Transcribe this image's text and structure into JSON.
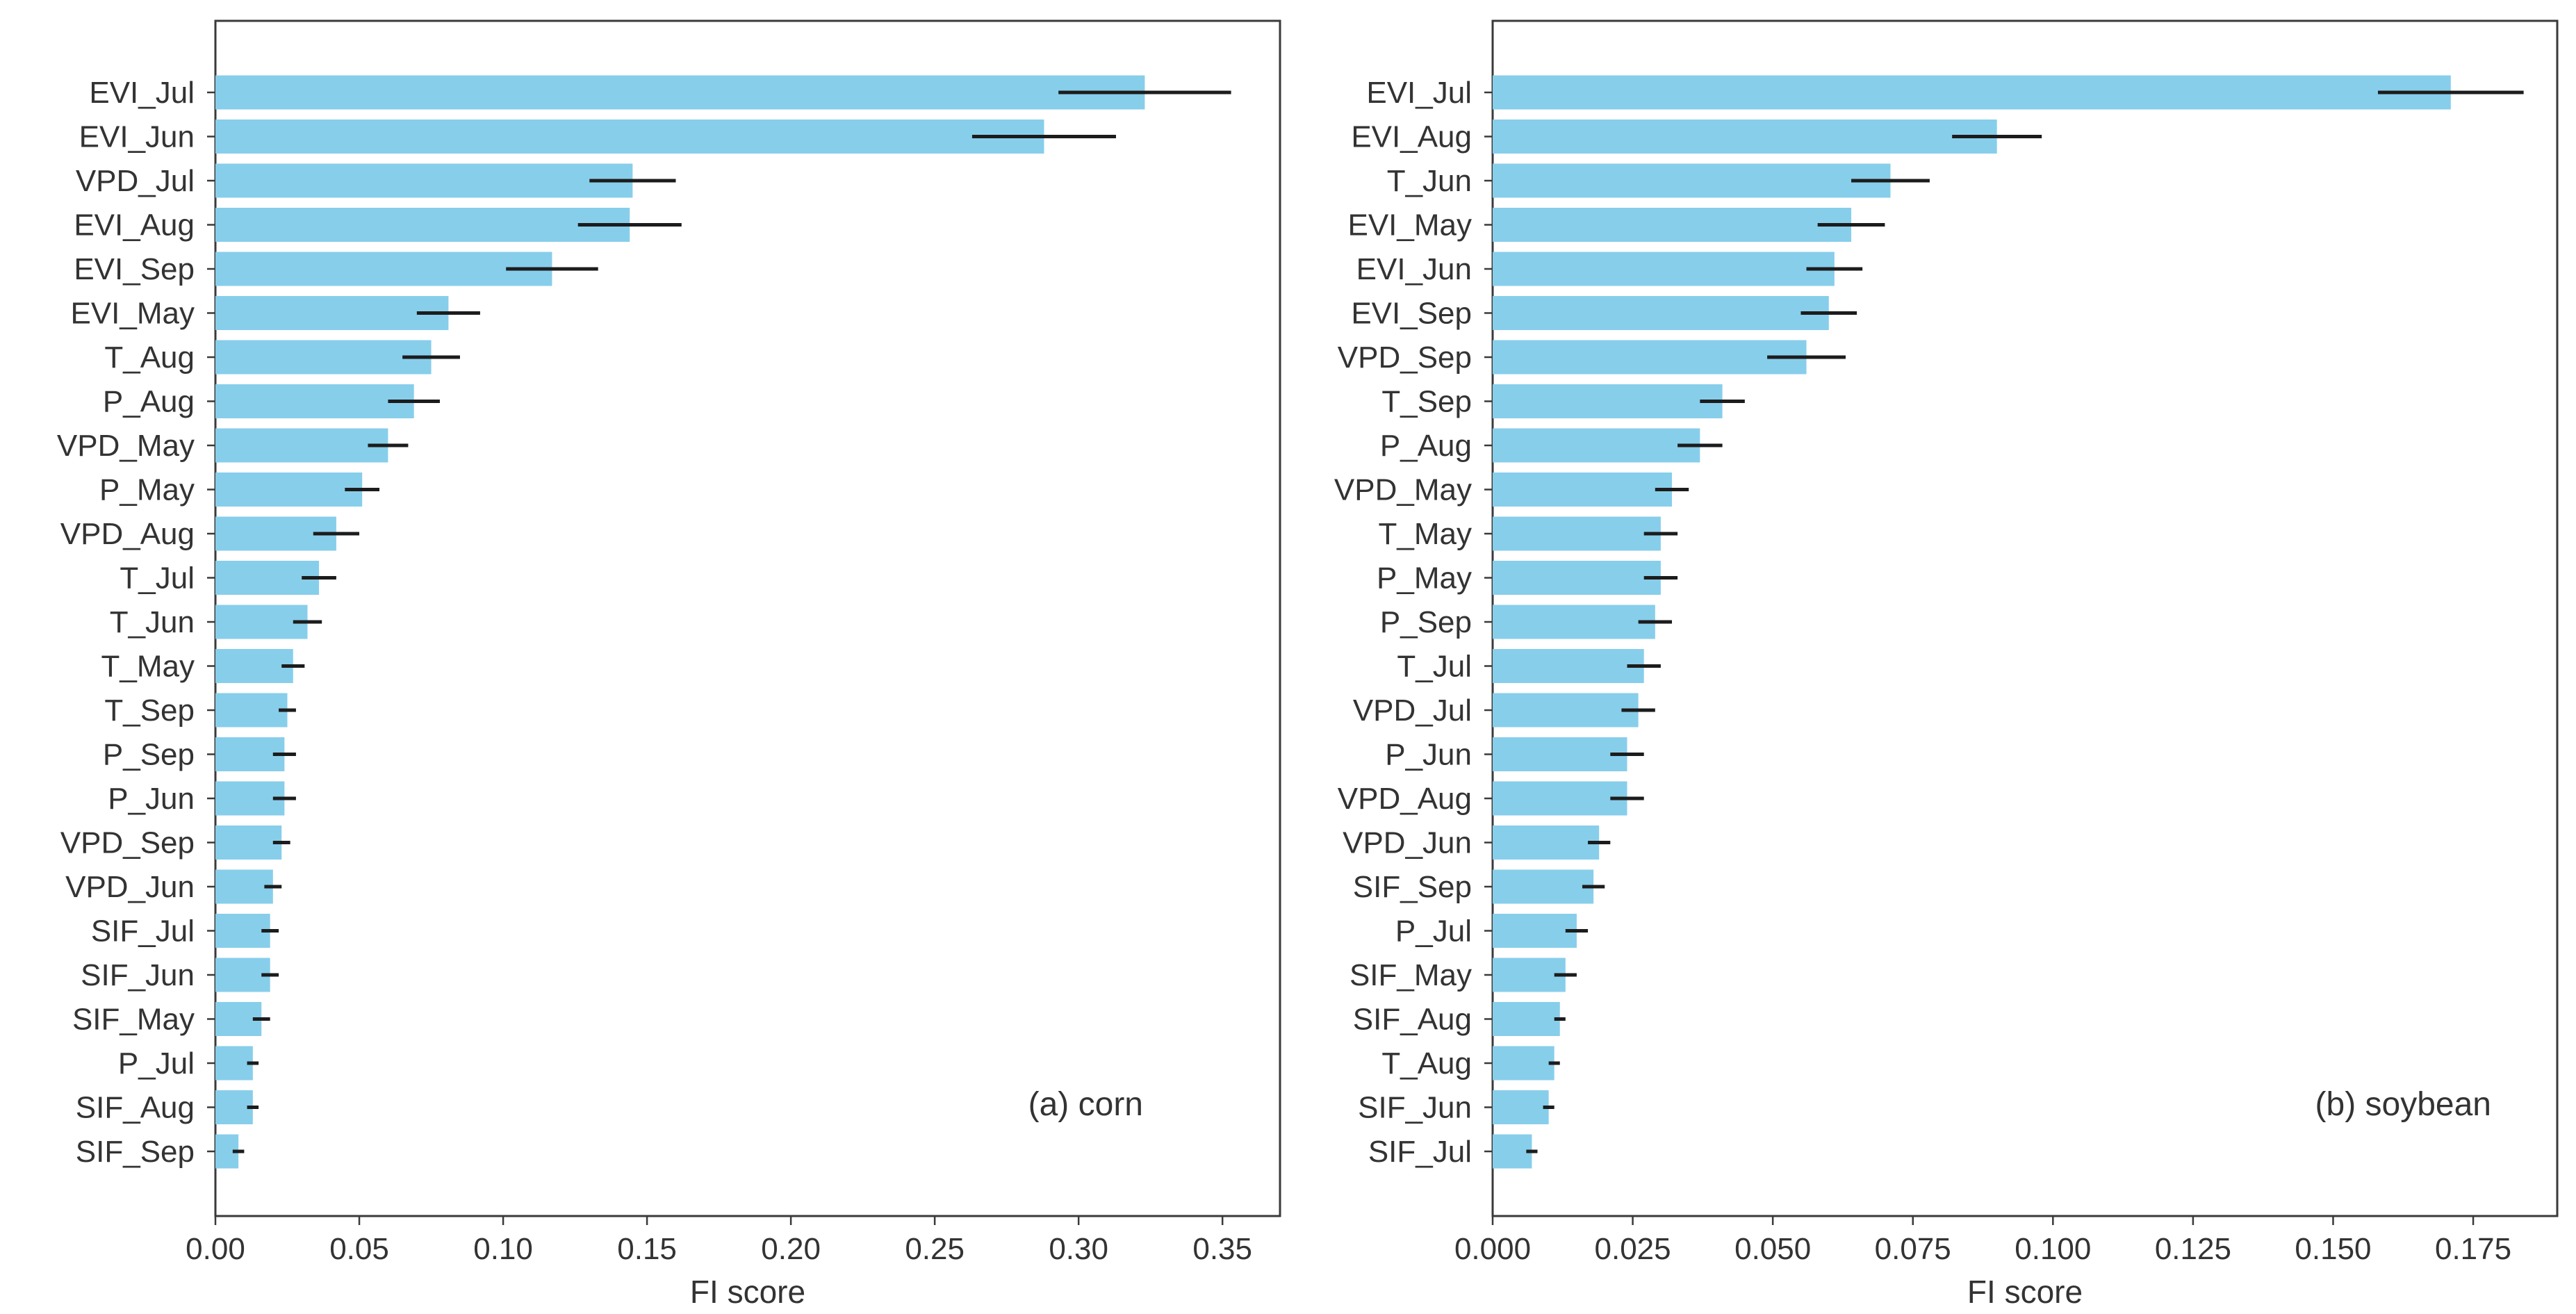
{
  "chart_data": [
    {
      "type": "bar",
      "orientation": "horizontal",
      "annotation": "(a) corn",
      "xlabel": "FI score",
      "xlim": [
        0,
        0.37
      ],
      "xticks": [
        0.0,
        0.05,
        0.1,
        0.15,
        0.2,
        0.25,
        0.3,
        0.35
      ],
      "xtick_labels": [
        "0.00",
        "0.05",
        "0.10",
        "0.15",
        "0.20",
        "0.25",
        "0.30",
        "0.35"
      ],
      "categories": [
        "EVI_Jul",
        "EVI_Jun",
        "VPD_Jul",
        "EVI_Aug",
        "EVI_Sep",
        "EVI_May",
        "T_Aug",
        "P_Aug",
        "VPD_May",
        "P_May",
        "VPD_Aug",
        "T_Jul",
        "T_Jun",
        "T_May",
        "T_Sep",
        "P_Sep",
        "P_Jun",
        "VPD_Sep",
        "VPD_Jun",
        "SIF_Jul",
        "SIF_Jun",
        "SIF_May",
        "P_Jul",
        "SIF_Aug",
        "SIF_Sep"
      ],
      "values": [
        0.323,
        0.288,
        0.145,
        0.144,
        0.117,
        0.081,
        0.075,
        0.069,
        0.06,
        0.051,
        0.042,
        0.036,
        0.032,
        0.027,
        0.025,
        0.024,
        0.024,
        0.023,
        0.02,
        0.019,
        0.019,
        0.016,
        0.013,
        0.013,
        0.008
      ],
      "errors": [
        0.03,
        0.025,
        0.015,
        0.018,
        0.016,
        0.011,
        0.01,
        0.009,
        0.007,
        0.006,
        0.008,
        0.006,
        0.005,
        0.004,
        0.003,
        0.004,
        0.004,
        0.003,
        0.003,
        0.003,
        0.003,
        0.003,
        0.002,
        0.002,
        0.002
      ]
    },
    {
      "type": "bar",
      "orientation": "horizontal",
      "annotation": "(b) soybean",
      "xlabel": "FI score",
      "xlim": [
        0,
        0.19
      ],
      "xticks": [
        0.0,
        0.025,
        0.05,
        0.075,
        0.1,
        0.125,
        0.15,
        0.175
      ],
      "xtick_labels": [
        "0.000",
        "0.025",
        "0.050",
        "0.075",
        "0.100",
        "0.125",
        "0.150",
        "0.175"
      ],
      "categories": [
        "EVI_Jul",
        "EVI_Aug",
        "T_Jun",
        "EVI_May",
        "EVI_Jun",
        "EVI_Sep",
        "VPD_Sep",
        "T_Sep",
        "P_Aug",
        "VPD_May",
        "T_May",
        "P_May",
        "P_Sep",
        "T_Jul",
        "VPD_Jul",
        "P_Jun",
        "VPD_Aug",
        "VPD_Jun",
        "SIF_Sep",
        "P_Jul",
        "SIF_May",
        "SIF_Aug",
        "T_Aug",
        "SIF_Jun",
        "SIF_Jul"
      ],
      "values": [
        0.171,
        0.09,
        0.071,
        0.064,
        0.061,
        0.06,
        0.056,
        0.041,
        0.037,
        0.032,
        0.03,
        0.03,
        0.029,
        0.027,
        0.026,
        0.024,
        0.024,
        0.019,
        0.018,
        0.015,
        0.013,
        0.012,
        0.011,
        0.01,
        0.007
      ],
      "errors": [
        0.013,
        0.008,
        0.007,
        0.006,
        0.005,
        0.005,
        0.007,
        0.004,
        0.004,
        0.003,
        0.003,
        0.003,
        0.003,
        0.003,
        0.003,
        0.003,
        0.003,
        0.002,
        0.002,
        0.002,
        0.002,
        0.001,
        0.001,
        0.001,
        0.001
      ]
    }
  ],
  "colors": {
    "bar": "#87ceeb",
    "errorbar": "#1c1c1c",
    "frame": "#3a3a3a"
  }
}
